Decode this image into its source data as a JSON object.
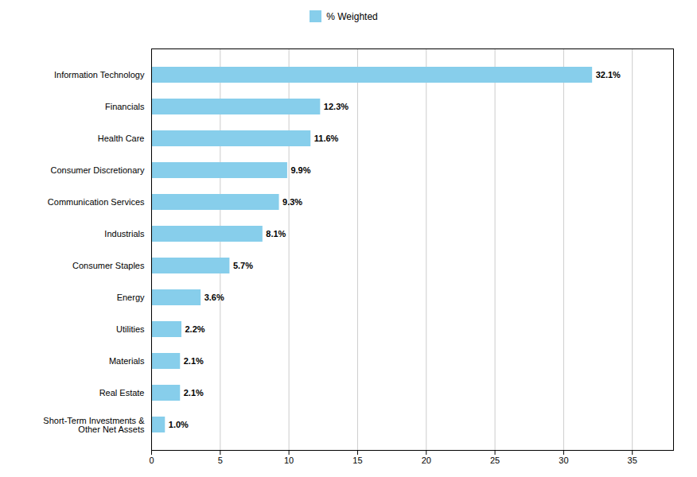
{
  "chart_data": {
    "type": "bar",
    "orientation": "horizontal",
    "categories": [
      "Short-Term Investments &\nOther Net Assets",
      "Real Estate",
      "Materials",
      "Utilities",
      "Energy",
      "Consumer Staples",
      "Industrials",
      "Communication Services",
      "Consumer Discretionary",
      "Health Care",
      "Financials",
      "Information Technology"
    ],
    "series": [
      {
        "name": "% Weighted",
        "color": "#87CEEB",
        "values": [
          1.0,
          2.1,
          2.1,
          2.2,
          3.6,
          5.7,
          8.1,
          9.3,
          9.9,
          11.6,
          12.3,
          32.1
        ],
        "value_labels": [
          "1.0%",
          "2.1%",
          "2.1%",
          "2.2%",
          "3.6%",
          "5.7%",
          "8.1%",
          "9.3%",
          "9.9%",
          "11.6%",
          "12.3%",
          "32.1%"
        ]
      }
    ],
    "xlim": [
      0,
      38
    ],
    "xticks": [
      0,
      5,
      10,
      15,
      20,
      25,
      30,
      35
    ],
    "grid": true,
    "legend": "top",
    "data_labels": true
  }
}
